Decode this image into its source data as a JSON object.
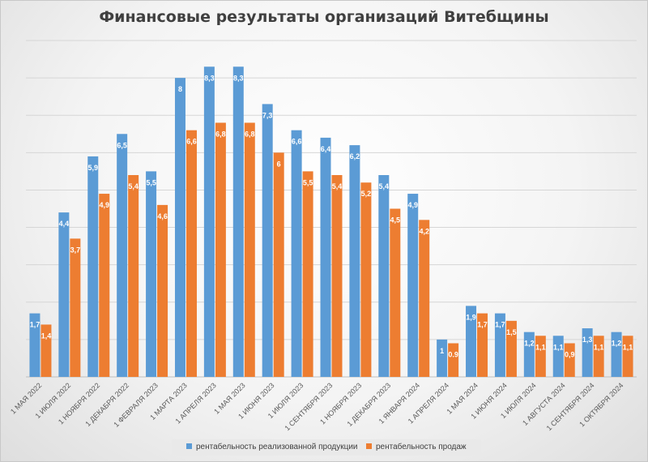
{
  "chart_data": {
    "type": "bar",
    "title": "Финансовые результаты организаций Витебщины",
    "categories": [
      "1 МАЯ 2022",
      "1 ИЮЛЯ 2022",
      "1 НОЯБРЯ 2022",
      "1 ДЕКАБРЯ 2022",
      "1 ФЕВРАЛЯ 2023",
      "1 МАРТА 2023",
      "1 АПРЕЛЯ 2023",
      "1 МАЯ 2023",
      "1 ИЮНЯ 2023",
      "1 ИЮЛЯ 2023",
      "1 СЕНТЯБРЯ 2023",
      "1 НОЯБРЯ 2023",
      "1 ДЕКАБРЯ 2023",
      "1 ЯНВАРЯ 2024",
      "1 АПРЕЛЯ 2024",
      "1 МАЯ 2024",
      "1 ИЮНЯ 2024",
      "1 ИЮЛЯ 2024",
      "1 АВГУСТА 2024",
      "1 СЕНТЯБРЯ 2024",
      "1 ОКТЯБРЯ 2024"
    ],
    "series": [
      {
        "name": "рентабельность реализованной продукции",
        "color": "#5b9bd5",
        "values": [
          1.7,
          4.4,
          5.9,
          6.5,
          5.5,
          8,
          8.3,
          8.3,
          7.3,
          6.6,
          6.4,
          6.2,
          5.4,
          4.9,
          1,
          1.9,
          1.7,
          1.2,
          1.1,
          1.3,
          1.2
        ],
        "labels": [
          "1,7",
          "4,4",
          "5,9",
          "6,5",
          "5,5",
          "8",
          "8,3",
          "8,3",
          "7,3",
          "6,6",
          "6,4",
          "6,2",
          "5,4",
          "4,9",
          "1",
          "1,9",
          "1,7",
          "1,2",
          "1,1",
          "1,3",
          "1,2"
        ]
      },
      {
        "name": "рентабельность продаж",
        "color": "#ed7d31",
        "values": [
          1.4,
          3.7,
          4.9,
          5.4,
          4.6,
          6.6,
          6.8,
          6.8,
          6,
          5.5,
          5.4,
          5.2,
          4.5,
          4.2,
          0.9,
          1.7,
          1.5,
          1.1,
          0.9,
          1.1,
          1.1
        ],
        "labels": [
          "1,4",
          "3,7",
          "4,9",
          "5,4",
          "4,6",
          "6,6",
          "6,8",
          "6,8",
          "6",
          "5,5",
          "5,4",
          "5,2",
          "4,5",
          "4,2",
          "0.9",
          "1,7",
          "1,5",
          "1,1",
          "0,9",
          "1,1",
          "1,1"
        ]
      }
    ],
    "ylim": [
      0,
      9
    ],
    "grid": true,
    "legend": "bottom"
  }
}
